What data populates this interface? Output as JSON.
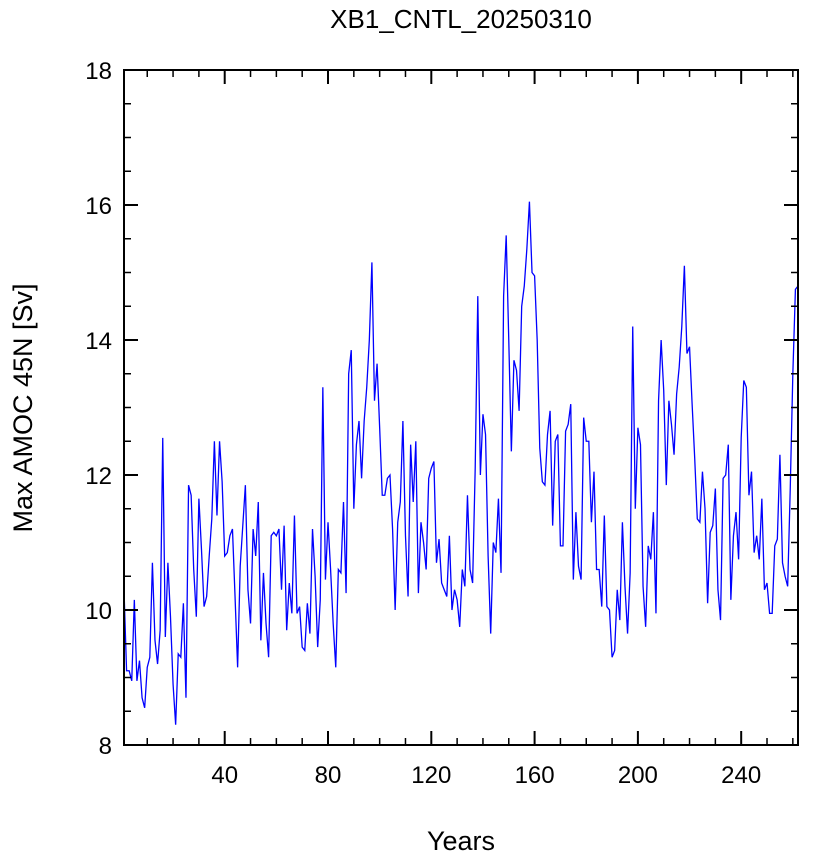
{
  "chart_data": {
    "type": "line",
    "title": "XB1_CNTL_20250310",
    "xlabel": "Years",
    "ylabel": "Max AMOC 45N [Sv]",
    "xlim": [
      1,
      262
    ],
    "ylim": [
      8,
      18
    ],
    "xticks": [
      40,
      80,
      120,
      160,
      200,
      240
    ],
    "yticks": [
      8,
      10,
      12,
      14,
      16,
      18
    ],
    "xticks_minor": [
      10,
      20,
      30,
      50,
      60,
      70,
      90,
      100,
      110,
      130,
      140,
      150,
      170,
      180,
      190,
      210,
      220,
      230,
      250,
      260
    ],
    "yticks_minor": [
      8.5,
      9,
      9.5,
      10.5,
      11,
      11.5,
      12.5,
      13,
      13.5,
      14.5,
      15,
      15.5,
      16.5,
      17,
      17.5
    ],
    "series": [
      {
        "color": "#0000ff",
        "x": [
          1,
          2,
          3,
          4,
          5,
          6,
          7,
          8,
          9,
          10,
          11,
          12,
          13,
          14,
          15,
          16,
          17,
          18,
          19,
          20,
          21,
          22,
          23,
          24,
          25,
          26,
          27,
          28,
          29,
          30,
          31,
          32,
          33,
          34,
          35,
          36,
          37,
          38,
          39,
          40,
          41,
          42,
          43,
          44,
          45,
          46,
          47,
          48,
          49,
          50,
          51,
          52,
          53,
          54,
          55,
          56,
          57,
          58,
          59,
          60,
          61,
          62,
          63,
          64,
          65,
          66,
          67,
          68,
          69,
          70,
          71,
          72,
          73,
          74,
          75,
          76,
          77,
          78,
          79,
          80,
          81,
          82,
          83,
          84,
          85,
          86,
          87,
          88,
          89,
          90,
          91,
          92,
          93,
          94,
          95,
          96,
          97,
          98,
          99,
          100,
          101,
          102,
          103,
          104,
          105,
          106,
          107,
          108,
          109,
          110,
          111,
          112,
          113,
          114,
          115,
          116,
          117,
          118,
          119,
          120,
          121,
          122,
          123,
          124,
          125,
          126,
          127,
          128,
          129,
          130,
          131,
          132,
          133,
          134,
          135,
          136,
          137,
          138,
          139,
          140,
          141,
          142,
          143,
          144,
          145,
          146,
          147,
          148,
          149,
          150,
          151,
          152,
          153,
          154,
          155,
          156,
          157,
          158,
          159,
          160,
          161,
          162,
          163,
          164,
          165,
          166,
          167,
          168,
          169,
          170,
          171,
          172,
          173,
          174,
          175,
          176,
          177,
          178,
          179,
          180,
          181,
          182,
          183,
          184,
          185,
          186,
          187,
          188,
          189,
          190,
          191,
          192,
          193,
          194,
          195,
          196,
          197,
          198,
          199,
          200,
          201,
          202,
          203,
          204,
          205,
          206,
          207,
          208,
          209,
          210,
          211,
          212,
          213,
          214,
          215,
          216,
          217,
          218,
          219,
          220,
          221,
          222,
          223,
          224,
          225,
          226,
          227,
          228,
          229,
          230,
          231,
          232,
          233,
          234,
          235,
          236,
          237,
          238,
          239,
          240,
          241,
          242,
          243,
          244,
          245,
          246,
          247,
          248,
          249,
          250,
          251,
          252,
          253,
          254,
          255,
          256,
          257,
          258,
          259,
          260,
          261,
          262
        ],
        "values": [
          10.3,
          9.1,
          9.1,
          8.95,
          10.15,
          8.95,
          9.25,
          8.7,
          8.55,
          9.15,
          9.3,
          10.7,
          9.55,
          9.2,
          9.7,
          12.55,
          9.6,
          10.7,
          9.9,
          8.9,
          8.3,
          9.35,
          9.3,
          10.1,
          8.7,
          11.85,
          11.7,
          10.6,
          9.9,
          11.65,
          10.9,
          10.05,
          10.2,
          10.8,
          11.35,
          12.5,
          11.4,
          12.5,
          11.9,
          10.8,
          10.85,
          11.1,
          11.2,
          10.2,
          9.15,
          10.65,
          11.25,
          11.85,
          10.3,
          9.8,
          11.2,
          10.8,
          11.6,
          9.55,
          10.55,
          9.8,
          9.3,
          11.1,
          11.15,
          11.1,
          11.2,
          10.3,
          11.25,
          9.7,
          10.4,
          9.95,
          11.4,
          9.95,
          10.05,
          9.45,
          9.4,
          10.1,
          9.65,
          11.2,
          10.5,
          9.45,
          10.15,
          13.3,
          10.45,
          11.3,
          10.6,
          9.8,
          9.15,
          10.6,
          10.55,
          11.6,
          10.25,
          13.5,
          13.85,
          11.5,
          12.45,
          12.8,
          11.95,
          12.8,
          13.3,
          14.0,
          15.15,
          13.1,
          13.65,
          12.7,
          11.7,
          11.7,
          11.95,
          12.0,
          11.2,
          10.0,
          11.3,
          11.6,
          12.8,
          11.1,
          10.2,
          12.45,
          11.6,
          12.5,
          10.25,
          11.3,
          11.0,
          10.6,
          11.95,
          12.1,
          12.2,
          10.7,
          11.05,
          10.4,
          10.3,
          10.2,
          11.1,
          10.0,
          10.3,
          10.15,
          9.75,
          10.6,
          10.35,
          11.7,
          10.6,
          10.4,
          12.1,
          14.65,
          12.0,
          12.9,
          12.6,
          10.8,
          9.65,
          11.0,
          10.85,
          11.65,
          10.55,
          14.65,
          15.55,
          14.0,
          12.35,
          13.7,
          13.55,
          12.95,
          14.5,
          14.8,
          15.35,
          16.05,
          15.0,
          14.95,
          14.0,
          12.4,
          11.9,
          11.85,
          12.6,
          12.95,
          11.25,
          12.5,
          12.6,
          10.95,
          10.95,
          12.65,
          12.75,
          13.05,
          10.45,
          11.45,
          10.65,
          10.45,
          12.85,
          12.5,
          12.5,
          11.3,
          12.05,
          10.6,
          10.6,
          10.05,
          11.4,
          10.05,
          10.0,
          9.3,
          9.4,
          10.3,
          9.85,
          11.3,
          10.35,
          9.65,
          10.55,
          14.2,
          11.5,
          12.7,
          12.45,
          10.35,
          9.75,
          10.95,
          10.75,
          11.45,
          9.95,
          13.1,
          14.0,
          13.25,
          11.85,
          13.1,
          12.75,
          12.3,
          13.2,
          13.6,
          14.2,
          15.1,
          13.8,
          13.9,
          13.05,
          12.25,
          11.35,
          11.3,
          12.05,
          11.5,
          10.1,
          11.15,
          11.25,
          11.8,
          10.3,
          9.85,
          11.95,
          12.0,
          12.45,
          10.15,
          11.1,
          11.45,
          10.75,
          12.55,
          13.4,
          13.3,
          11.7,
          12.05,
          10.85,
          11.1,
          10.75,
          11.65,
          10.3,
          10.4,
          9.95,
          9.95,
          10.95,
          11.05,
          12.3,
          10.7,
          10.5,
          10.35,
          11.8,
          13.5,
          14.75,
          14.8
        ]
      }
    ]
  }
}
